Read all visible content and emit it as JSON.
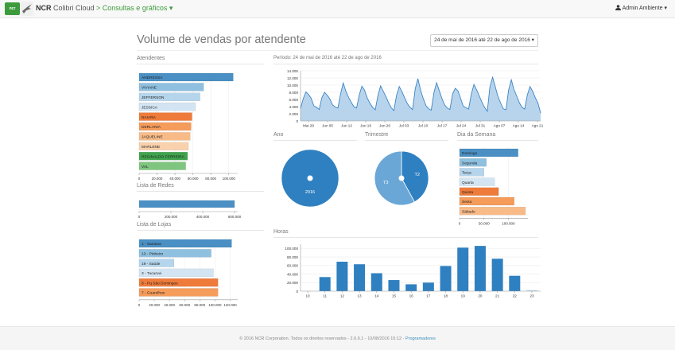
{
  "navbar": {
    "logo_text": "ncr",
    "brand_ncr": "NCR",
    "brand_name": " Colibri Cloud ",
    "brand_link": "> Consultas e gráficos ▾",
    "user": "Admin Ambiente ▾"
  },
  "page": {
    "title": "Volume de vendas por atendente",
    "date_range": "24 de mai de 2016 até 22 de ago de 2016 ▾"
  },
  "sections": {
    "atendentes": "Atendentes",
    "redes": "Lista de Redes",
    "lojas": "Lista de Lojas",
    "periodo": "Período: 24 de mai de 2016 até 22 de ago de 2016",
    "ano": "Ano",
    "trimestre": "Trimestre",
    "dia_semana": "Dia da Semana",
    "horas": "Horas"
  },
  "colors": {
    "c1": "#4a90c4",
    "c2": "#8fc0e0",
    "c3": "#b5d5ec",
    "c4": "#d3e5f3",
    "c5": "#ef7b3a",
    "c6": "#f59c5b",
    "c7": "#f8bb88",
    "c8": "#fad1ad",
    "c9": "#3fa34d",
    "c10": "#7fc57f",
    "area": "#b8d4ec",
    "areaLine": "#3a85c6",
    "blue": "#2f80c0"
  },
  "chart_data": [
    {
      "id": "atendentes",
      "type": "bar",
      "orientation": "horizontal",
      "categories": [
        "ANDRESSA",
        "VIVIANE",
        "JEFFERSON",
        "JESSICA",
        "NAIARA",
        "DERLANIA",
        "JAQUELINE",
        "MARLENE",
        "REGINALDO FERREIRA",
        "VAL"
      ],
      "values": [
        105000,
        72000,
        68000,
        63000,
        59000,
        58000,
        57000,
        55000,
        54000,
        52000
      ],
      "xticks": [
        "0",
        "20.000",
        "40.000",
        "60.000",
        "80.000",
        "100.000"
      ],
      "xlim": [
        0,
        110000
      ]
    },
    {
      "id": "redes",
      "type": "bar",
      "orientation": "horizontal",
      "categories": [
        ""
      ],
      "values": [
        600000
      ],
      "xticks": [
        "0",
        "200.000",
        "400.000",
        "600.000"
      ],
      "xlim": [
        0,
        620000
      ]
    },
    {
      "id": "lojas",
      "type": "bar",
      "orientation": "horizontal",
      "categories": [
        "1 - Santana",
        "13 - Pinheiro",
        "19 - Saúde",
        "3 - Tucuruvi",
        "8 - Pq São Domingos",
        "7 - Guarulhos"
      ],
      "values": [
        122000,
        95000,
        46000,
        98000,
        104000,
        104000
      ],
      "xticks": [
        "0",
        "20.000",
        "40.000",
        "60.000",
        "80.000",
        "100.000",
        "120.000"
      ],
      "xlim": [
        0,
        130000
      ]
    },
    {
      "id": "periodo",
      "type": "area",
      "xticks": [
        "Mai 29",
        "Jun 05",
        "Jun 12",
        "Jun 19",
        "Jun 26",
        "Jul 03",
        "Jul 10",
        "Jul 17",
        "Jul 24",
        "Jul 31",
        "Ago 07",
        "Ago 14",
        "Ago 21"
      ],
      "yticks": [
        "0",
        "2.000",
        "4.000",
        "6.000",
        "8.000",
        "10.000",
        "12.000",
        "14.000"
      ],
      "ylim": [
        0,
        14000
      ],
      "values": [
        3500,
        6200,
        8100,
        7400,
        6300,
        4200,
        3800,
        3200,
        6500,
        8000,
        7200,
        6100,
        4500,
        3900,
        3600,
        7500,
        10600,
        8300,
        6600,
        5200,
        4000,
        3600,
        7200,
        9700,
        8600,
        6400,
        5000,
        3800,
        3100,
        7000,
        9800,
        8300,
        6800,
        5100,
        3700,
        2900,
        7200,
        9600,
        8200,
        6500,
        4900,
        3800,
        3200,
        9000,
        11800,
        8600,
        6200,
        4300,
        3400,
        3000,
        7900,
        10700,
        8500,
        6300,
        4500,
        3600,
        3200,
        7600,
        9100,
        8400,
        6300,
        4100,
        3700,
        3300,
        7500,
        10200,
        8700,
        7000,
        5200,
        3800,
        2700,
        9500,
        12200,
        9500,
        6800,
        5000,
        3400,
        3100,
        8600,
        11500,
        8800,
        7000,
        5100,
        3800,
        3300,
        7200,
        9600,
        8300,
        6500,
        5000,
        2200
      ]
    },
    {
      "id": "ano",
      "type": "pie",
      "labels": [
        "2016"
      ],
      "values": [
        100
      ]
    },
    {
      "id": "trimestre",
      "type": "pie",
      "labels": [
        "T2",
        "T3"
      ],
      "values": [
        42,
        58
      ]
    },
    {
      "id": "dia_semana",
      "type": "bar",
      "orientation": "horizontal",
      "categories": [
        "Domingo",
        "Segunda",
        "Terça",
        "Quarta",
        "Quinta",
        "Sexta",
        "Sábado"
      ],
      "values": [
        120000,
        55000,
        50000,
        72000,
        80000,
        112000,
        135000
      ],
      "xticks": [
        "0",
        "50.000",
        "100.000"
      ],
      "xlim": [
        0,
        140000
      ]
    },
    {
      "id": "horas",
      "type": "bar",
      "categories": [
        "10",
        "11",
        "12",
        "13",
        "14",
        "15",
        "16",
        "17",
        "18",
        "19",
        "20",
        "21",
        "22",
        "23"
      ],
      "values": [
        0,
        33000,
        69000,
        63000,
        42000,
        26000,
        16000,
        20000,
        59000,
        102000,
        106000,
        76000,
        36000,
        1000
      ],
      "yticks": [
        "0",
        "20.000",
        "40.000",
        "60.000",
        "80.000",
        "100.000"
      ],
      "ylim": [
        0,
        110000
      ]
    }
  ],
  "footer": {
    "text": "© 2016 NCR Corporation. Todos os direitos reservados - 2.6.6.1 - 10/08/2016 15:12 - ",
    "link": "Programadores"
  }
}
